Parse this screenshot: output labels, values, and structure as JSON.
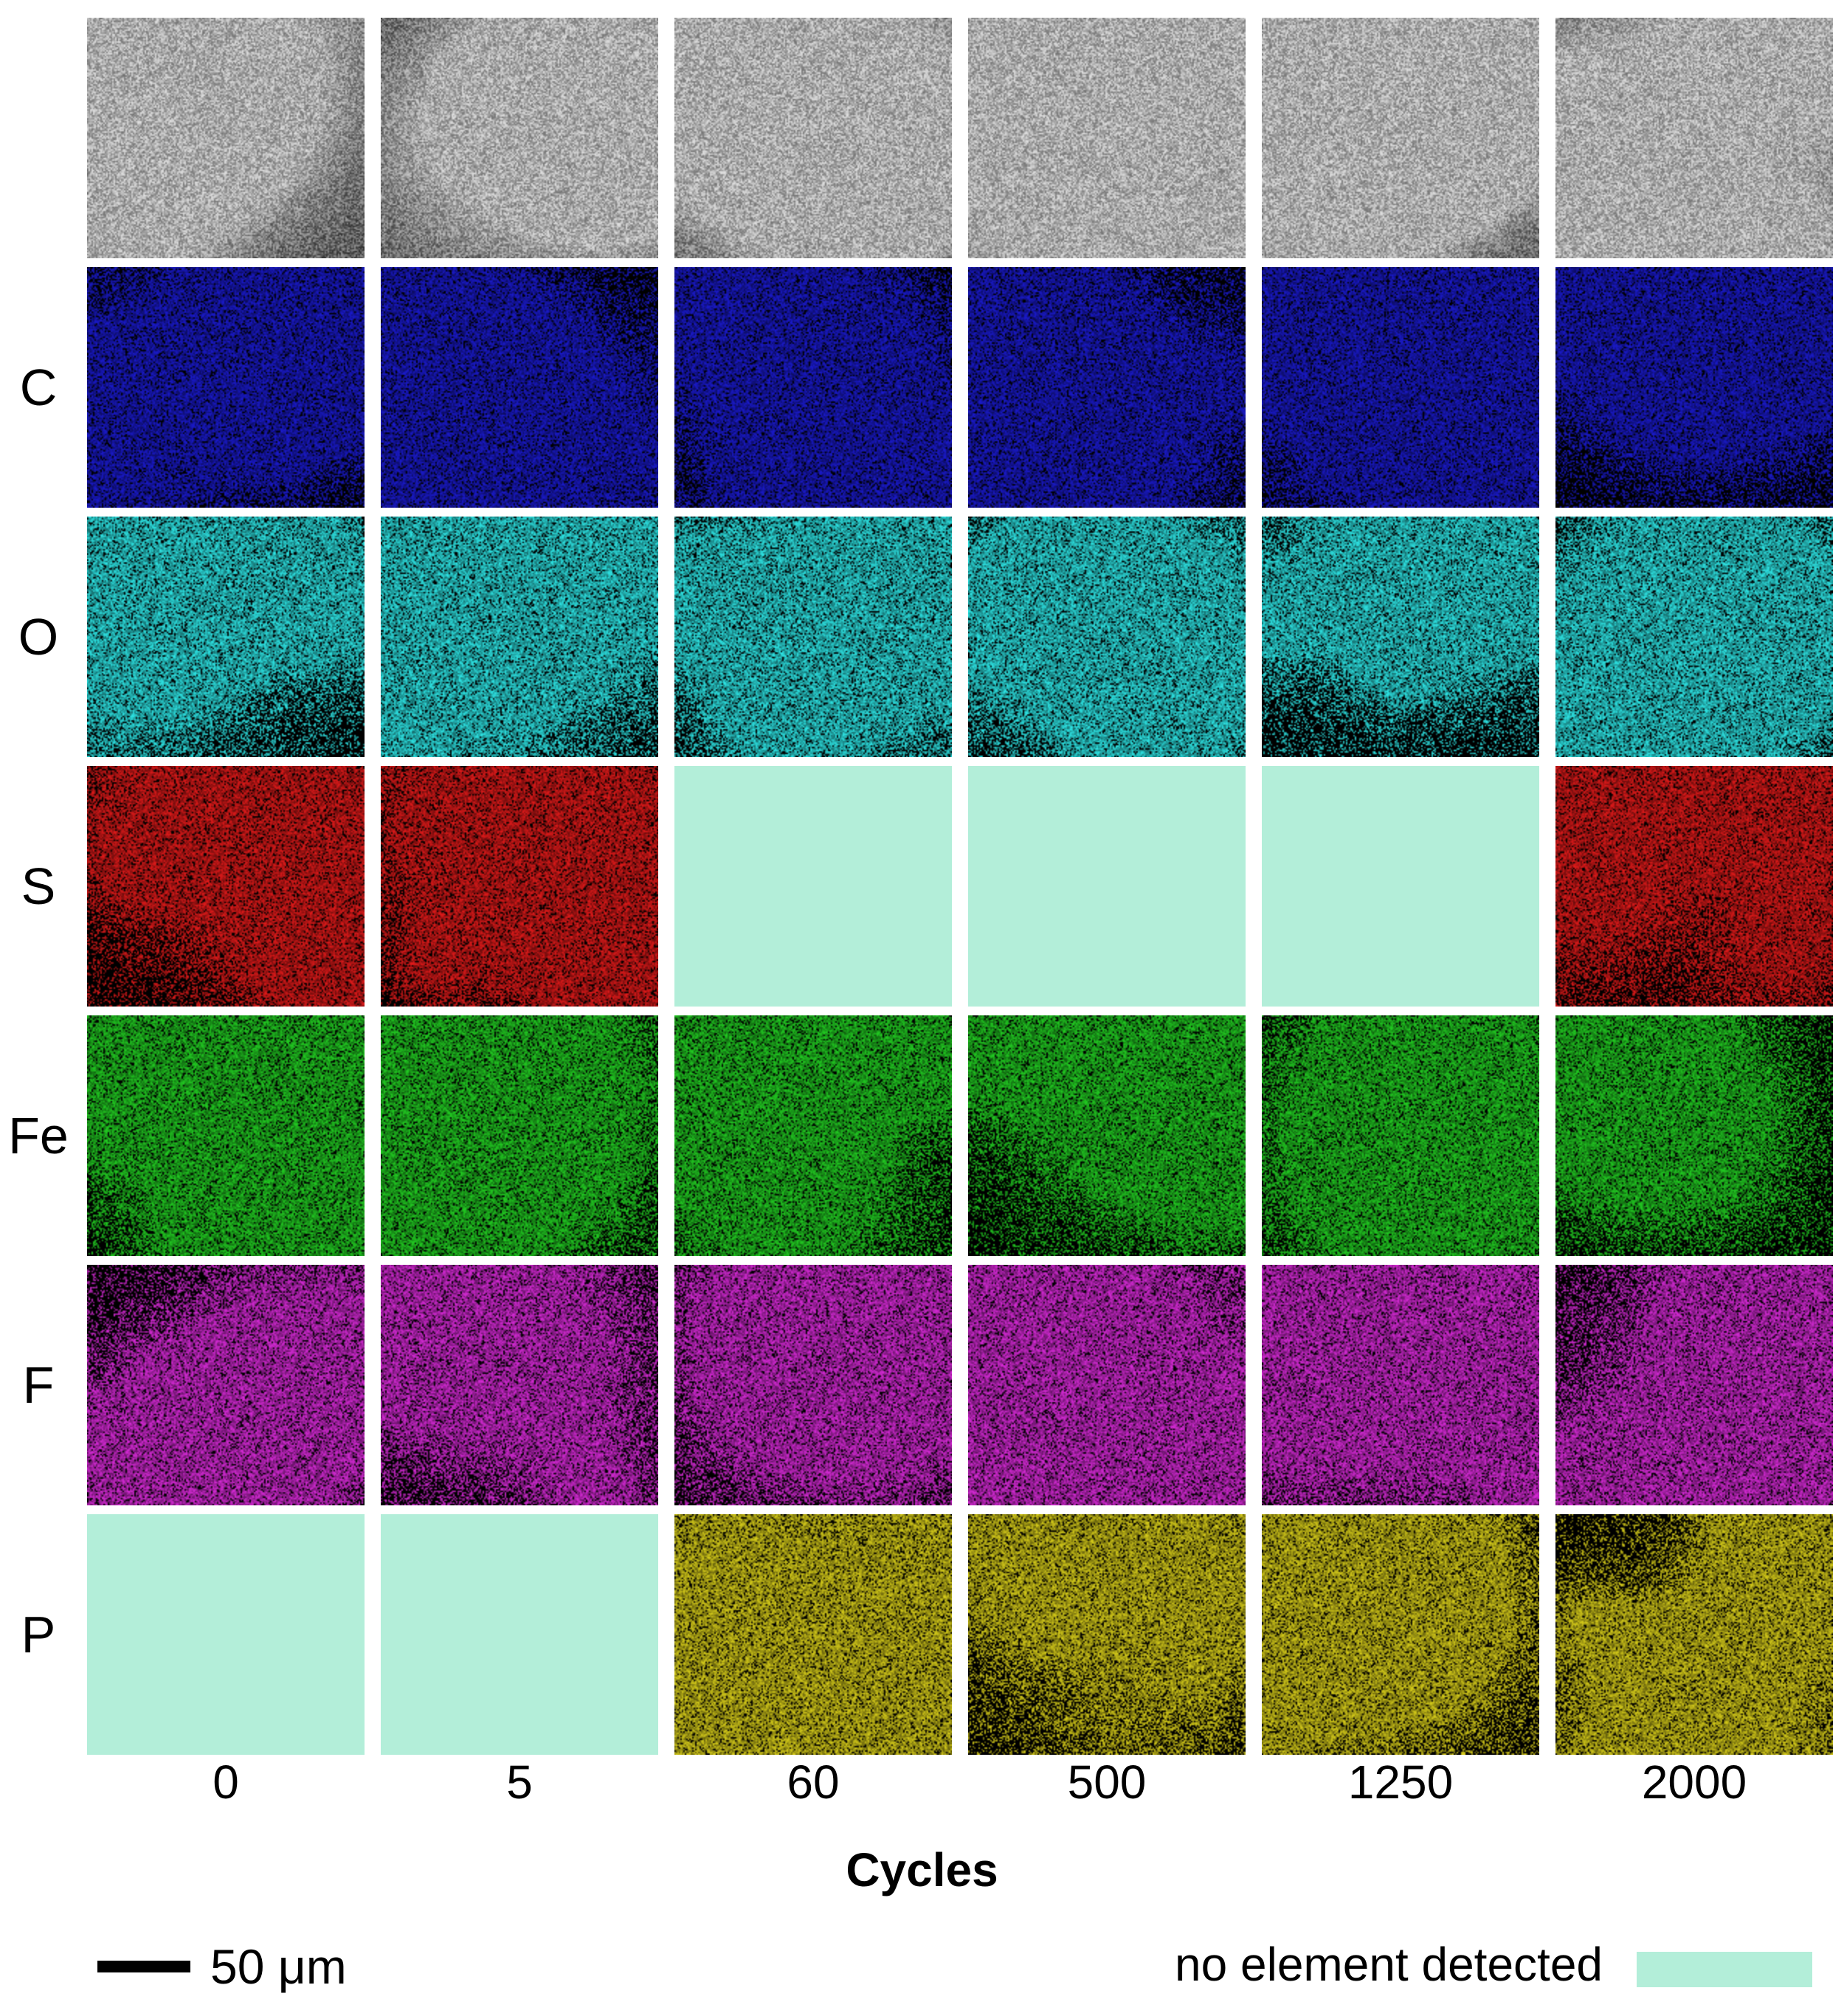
{
  "figure": {
    "rows": [
      {
        "key": "sem",
        "label": "",
        "color": "#9a9a9a"
      },
      {
        "key": "C",
        "label": "C",
        "color": "#1a1acc"
      },
      {
        "key": "O",
        "label": "O",
        "color": "#2ee6e6"
      },
      {
        "key": "S",
        "label": "S",
        "color": "#e01a1a"
      },
      {
        "key": "Fe",
        "label": "Fe",
        "color": "#22cc22"
      },
      {
        "key": "F",
        "label": "F",
        "color": "#d62ad6"
      },
      {
        "key": "P",
        "label": "P",
        "color": "#d6cc1a"
      }
    ],
    "columns": [
      "0",
      "5",
      "60",
      "500",
      "1250",
      "2000"
    ],
    "not_detected": [
      {
        "row": "S",
        "column": "60"
      },
      {
        "row": "S",
        "column": "500"
      },
      {
        "row": "S",
        "column": "1250"
      },
      {
        "row": "P",
        "column": "0"
      },
      {
        "row": "P",
        "column": "5"
      }
    ],
    "axis_title": "Cycles",
    "scale_bar": {
      "label": "50 μm"
    },
    "legend": {
      "label": "no element detected",
      "color": "#b3eed9"
    }
  }
}
